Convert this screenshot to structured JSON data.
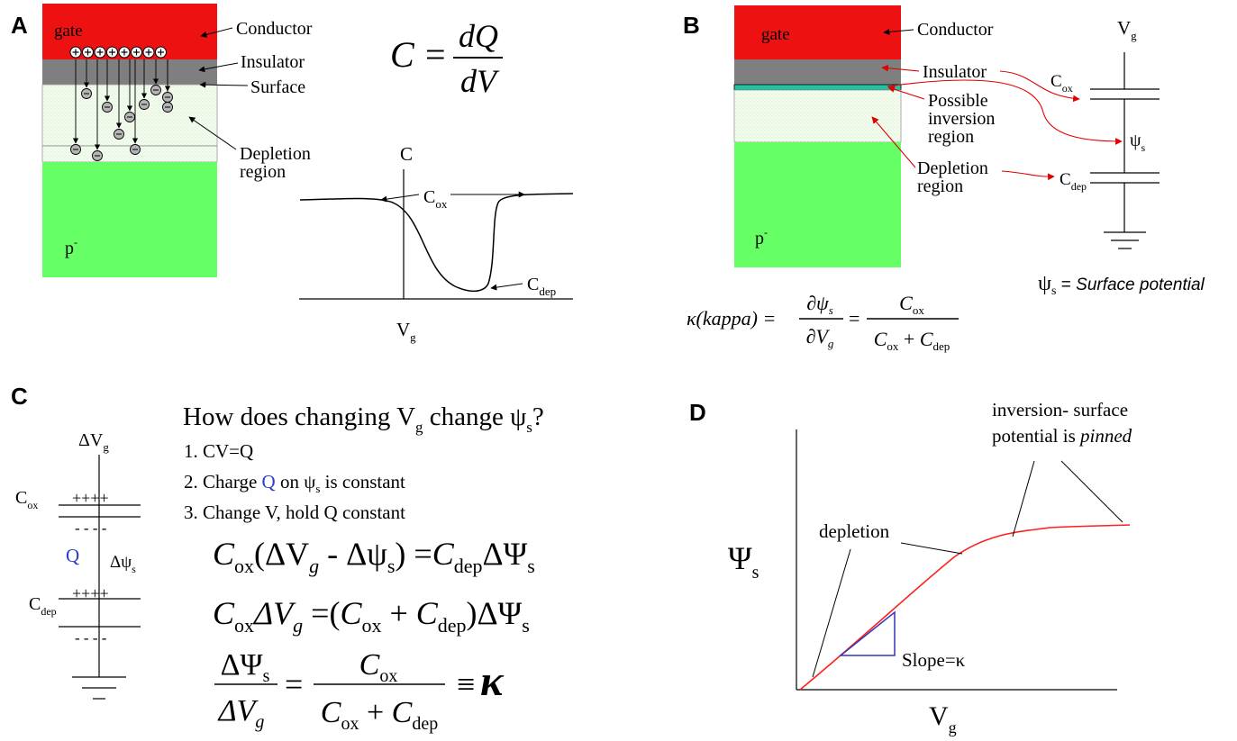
{
  "panel_labels": {
    "a": "A",
    "b": "B",
    "c": "C",
    "d": "D"
  },
  "colors": {
    "gate": "#ee1111",
    "insulator": "#7f7f7f",
    "substrate": "#66ff66",
    "depletion": "#eefbe8",
    "inversion": "#22c3a0",
    "annotation_arrow": "#e00000",
    "curve_d": "#ff2020",
    "slope_triangle": "#3333bb",
    "charge_q": "#2a3dc4"
  },
  "panel_a": {
    "gate": "gate",
    "substrate": "p",
    "substrate_sup": "-",
    "conductor": "Conductor",
    "insulator": "Insulator",
    "surface": "Surface",
    "depletion_1": "Depletion",
    "depletion_2": "region",
    "eq_c": "C",
    "eq_eq": "=",
    "eq_num": "dQ",
    "eq_den": "dV",
    "cv_y": "C",
    "cv_x": "V",
    "cv_x_sub": "g",
    "cox": "C",
    "cox_sub": "ox",
    "cdep": "C",
    "cdep_sub": "dep"
  },
  "panel_b": {
    "gate": "gate",
    "substrate": "p",
    "substrate_sup": "-",
    "conductor": "Conductor",
    "insulator": "Insulator",
    "possible_1": "Possible",
    "possible_2": "inversion",
    "possible_3": "region",
    "depletion_1": "Depletion",
    "depletion_2": "region",
    "vg": "V",
    "vg_sub": "g",
    "cox": "C",
    "cox_sub": "ox",
    "psi": "ψ",
    "psi_sub": "s",
    "cdep": "C",
    "cdep_sub": "dep",
    "caption_psi": "ψ",
    "caption_sub": "s",
    "caption_eq": " = ",
    "caption_text": "Surface potential",
    "kappa_lhs": "κ(kappa) =",
    "kappa_num": "∂ψ",
    "kappa_num_sub": "s",
    "kappa_den": "∂V",
    "kappa_den_sub": "g",
    "kappa_eq": "=",
    "kappa_rnum": "C",
    "kappa_rnum_sub": "ox",
    "kappa_rden_a": "C",
    "kappa_rden_a_sub": "ox",
    "kappa_rden_plus": " + ",
    "kappa_rden_b": "C",
    "kappa_rden_b_sub": "dep"
  },
  "panel_c": {
    "dvg": "ΔV",
    "dvg_sub": "g",
    "cox": "C",
    "cox_sub": "ox",
    "plus": "++++",
    "minus": "- - - -",
    "q": "Q",
    "dpsi": "Δψ",
    "dpsi_sub": "s",
    "cdep": "C",
    "cdep_sub": "dep",
    "question_a": "How does changing V",
    "question_sub1": "g",
    "question_b": " change ψ",
    "question_sub2": "s",
    "question_c": "?",
    "item1": "1.   CV=Q",
    "item2_a": "2.   Charge ",
    "item2_q": "Q",
    "item2_b": " on ψ",
    "item2_sub": "s",
    "item2_c": " is constant",
    "item3": "3.   Change V, hold Q constant",
    "eq1": [
      {
        "t": "C",
        "i": true
      },
      {
        "t": "ox",
        "sub": true
      },
      {
        "t": "(ΔV"
      },
      {
        "t": "g",
        "sub": true,
        "i": true
      },
      {
        "t": " - Δψ",
        "i": false
      },
      {
        "t": "s",
        "sub": true
      },
      {
        "t": ") ="
      },
      {
        "t": "C",
        "i": true
      },
      {
        "t": "dep",
        "sub": true
      },
      {
        "t": "ΔΨ"
      },
      {
        "t": "s",
        "sub": true
      }
    ],
    "eq2": [
      {
        "t": "C",
        "i": true
      },
      {
        "t": "ox",
        "sub": true
      },
      {
        "t": "ΔV",
        "i": true
      },
      {
        "t": "g",
        "sub": true,
        "i": true
      },
      {
        "t": " =("
      },
      {
        "t": "C",
        "i": true
      },
      {
        "t": "ox",
        "sub": true
      },
      {
        "t": " + "
      },
      {
        "t": "C",
        "i": true
      },
      {
        "t": "dep",
        "sub": true
      },
      {
        "t": ")ΔΨ"
      },
      {
        "t": "s",
        "sub": true
      }
    ],
    "eq3_num": "ΔΨ",
    "eq3_num_sub": "s",
    "eq3_den": "ΔV",
    "eq3_den_sub": "g",
    "eq3_eq": "=",
    "eq3_rnum": "C",
    "eq3_rnum_sub": "ox",
    "eq3_rden_a": "C",
    "eq3_rden_a_sub": "ox",
    "eq3_rden_plus": " + ",
    "eq3_rden_b": "C",
    "eq3_rden_b_sub": "dep",
    "eq3_equiv": "≡",
    "eq3_kappa": "κ"
  },
  "panel_d": {
    "y_label": "Ψ",
    "y_sub": "s",
    "x_label": "V",
    "x_sub": "g",
    "depletion": "depletion",
    "inversion_1": "inversion- surface",
    "inversion_2a": "potential is ",
    "inversion_2b": "pinned",
    "slope": "Slope=κ"
  }
}
